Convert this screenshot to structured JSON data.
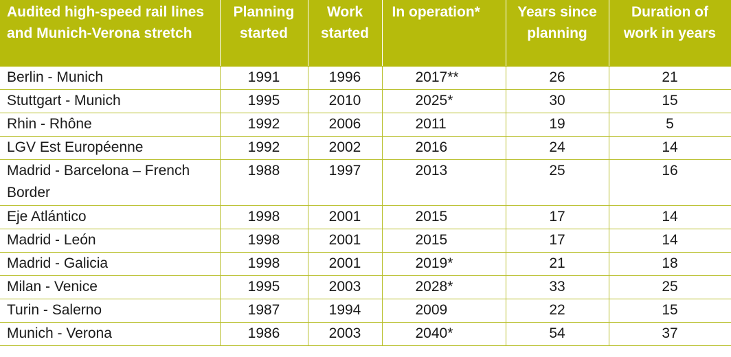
{
  "table": {
    "headers": [
      "Audited high-speed rail lines and Munich-Verona stretch",
      "Planning started",
      "Work started",
      "In operation*",
      "Years since planning",
      "Duration of work in years"
    ],
    "rows": [
      {
        "line": "Berlin - Munich",
        "planning": "1991",
        "work": "1996",
        "operation": "2017**",
        "years": "26",
        "duration": "21"
      },
      {
        "line": "Stuttgart - Munich",
        "planning": "1995",
        "work": "2010",
        "operation": "2025*",
        "years": "30",
        "duration": "15"
      },
      {
        "line": "Rhin - Rhône",
        "planning": "1992",
        "work": "2006",
        "operation": "2011",
        "years": "19",
        "duration": "5"
      },
      {
        "line": "LGV Est Européenne",
        "planning": "1992",
        "work": "2002",
        "operation": "2016",
        "years": "24",
        "duration": "14"
      },
      {
        "line": "Madrid - Barcelona – French Border",
        "planning": "1988",
        "work": "1997",
        "operation": "2013",
        "years": "25",
        "duration": "16"
      },
      {
        "line": "Eje Atlántico",
        "planning": "1998",
        "work": "2001",
        "operation": "2015",
        "years": "17",
        "duration": "14"
      },
      {
        "line": "Madrid - León",
        "planning": "1998",
        "work": "2001",
        "operation": "2015",
        "years": "17",
        "duration": "14"
      },
      {
        "line": "Madrid - Galicia",
        "planning": "1998",
        "work": "2001",
        "operation": "2019*",
        "years": "21",
        "duration": "18"
      },
      {
        "line": "Milan - Venice",
        "planning": "1995",
        "work": "2003",
        "operation": "2028*",
        "years": "33",
        "duration": "25"
      },
      {
        "line": "Turin - Salerno",
        "planning": "1987",
        "work": "1994",
        "operation": "2009",
        "years": "22",
        "duration": "15"
      },
      {
        "line": "Munich - Verona",
        "planning": "1986",
        "work": "2003",
        "operation": "2040*",
        "years": "54",
        "duration": "37"
      }
    ]
  },
  "colors": {
    "header_bg": "#b6bb0c",
    "header_text": "#ffffff",
    "grid": "#b8bf2a"
  }
}
